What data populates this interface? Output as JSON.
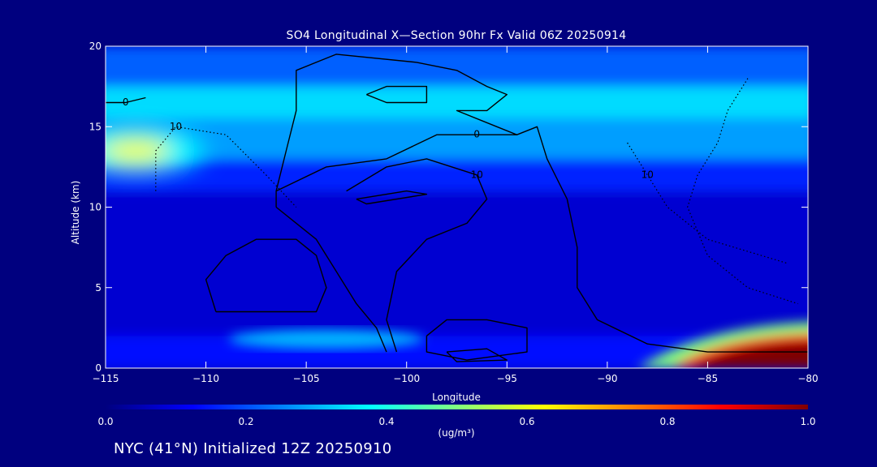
{
  "chart_data": {
    "type": "heatmap",
    "title": "SO4 Longitudinal X—Section 90hr  Fx Valid 06Z 20250914",
    "xlabel": "Longitude",
    "ylabel": "Altitude (km)",
    "xlim": [
      -115,
      -80
    ],
    "ylim": [
      0,
      20
    ],
    "x_ticks": [
      -115,
      -110,
      -105,
      -100,
      -95,
      -90,
      -85,
      -80
    ],
    "x_tick_labels": [
      "−115",
      "−110",
      "−105",
      "−100",
      "−95",
      "−90",
      "−85",
      "−80"
    ],
    "y_ticks": [
      0,
      5,
      10,
      15,
      20
    ],
    "y_tick_labels": [
      "0",
      "5",
      "10",
      "15",
      "20"
    ],
    "colorbar": {
      "min": 0.0,
      "max": 1.0,
      "ticks": [
        0.0,
        0.2,
        0.4,
        0.6,
        0.8,
        1.0
      ],
      "tick_labels": [
        "0.0",
        "0.2",
        "0.4",
        "0.6",
        "0.8",
        "1.0"
      ],
      "units": "(ug/m³)",
      "colors": [
        "#00007f",
        "#0000ff",
        "#0080ff",
        "#00ffff",
        "#80ff80",
        "#ffff00",
        "#ff8000",
        "#ff0000",
        "#7f0000"
      ]
    },
    "field": {
      "background": 0.07,
      "layers": [
        {
          "lon_range": [
            -115,
            -80
          ],
          "alt_range": [
            17.5,
            20
          ],
          "value": 0.22
        },
        {
          "lon_range": [
            -115,
            -80
          ],
          "alt_range": [
            15.5,
            17.5
          ],
          "value": 0.34
        },
        {
          "lon_range": [
            -115,
            -80
          ],
          "alt_range": [
            13,
            15.5
          ],
          "value": 0.28
        },
        {
          "lon_range": [
            -115,
            -80
          ],
          "alt_range": [
            11,
            13
          ],
          "value": 0.16
        },
        {
          "lon_range": [
            -115,
            -80
          ],
          "alt_range": [
            2,
            11
          ],
          "value": 0.08
        },
        {
          "lon_range": [
            -115,
            -80
          ],
          "alt_range": [
            0,
            2
          ],
          "value": 0.14
        }
      ],
      "features": [
        {
          "name": "upper-plume",
          "lon": -113.5,
          "alt": 13.5,
          "value": 0.62
        },
        {
          "name": "lower-plume-ne",
          "lon": -82.5,
          "alt": 1.0,
          "value": 1.0
        },
        {
          "name": "surface-band",
          "lon": -104,
          "alt": 1.8,
          "value": 0.3
        }
      ]
    },
    "contours": [
      {
        "level": 0,
        "style": "solid",
        "label": "0",
        "path": [
          [
            -106.5,
            10
          ],
          [
            -106.5,
            11
          ],
          [
            -104,
            12.5
          ],
          [
            -101,
            13
          ],
          [
            -98.5,
            14.5
          ],
          [
            -96.5,
            14.5
          ],
          [
            -94.5,
            14.5
          ],
          [
            -93.5,
            15
          ],
          [
            -93,
            13
          ],
          [
            -92,
            10.5
          ],
          [
            -91.5,
            7.5
          ],
          [
            -91.5,
            5
          ],
          [
            -90.5,
            3
          ],
          [
            -88,
            1.5
          ],
          [
            -85,
            1
          ],
          [
            -82,
            1
          ],
          [
            -80,
            1
          ]
        ]
      },
      {
        "level": 0,
        "style": "solid",
        "label": "",
        "path": [
          [
            -106.5,
            10
          ],
          [
            -104.5,
            8
          ],
          [
            -103.5,
            6
          ],
          [
            -102.5,
            4
          ],
          [
            -101.5,
            2.5
          ],
          [
            -101,
            1
          ]
        ]
      },
      {
        "level": 0,
        "style": "solid",
        "label": "",
        "path": [
          [
            -106.5,
            11
          ],
          [
            -106,
            13.5
          ],
          [
            -105.5,
            16
          ],
          [
            -105.5,
            18.5
          ],
          [
            -103.5,
            19.5
          ],
          [
            -99.5,
            19
          ],
          [
            -97.5,
            18.5
          ],
          [
            -96,
            17.5
          ],
          [
            -95,
            17
          ],
          [
            -96,
            16
          ],
          [
            -97.5,
            16
          ],
          [
            -95.5,
            15
          ],
          [
            -94.5,
            14.5
          ]
        ]
      },
      {
        "level": 0,
        "style": "solid",
        "label": "",
        "path": [
          [
            -109.5,
            3.5
          ],
          [
            -110,
            5.5
          ],
          [
            -109,
            7
          ],
          [
            -107.5,
            8
          ],
          [
            -105.5,
            8
          ],
          [
            -104.5,
            7
          ],
          [
            -104,
            5
          ],
          [
            -104.5,
            3.5
          ],
          [
            -106.5,
            3.5
          ],
          [
            -109.5,
            3.5
          ]
        ]
      },
      {
        "level": 0,
        "style": "solid",
        "label": "",
        "path": [
          [
            -102,
            17
          ],
          [
            -101,
            17.5
          ],
          [
            -99,
            17.5
          ],
          [
            -99,
            16.5
          ],
          [
            -101,
            16.5
          ],
          [
            -102,
            17
          ]
        ]
      },
      {
        "level": 0,
        "style": "solid",
        "label": "0",
        "path": [
          [
            -115,
            16.5
          ],
          [
            -114,
            16.5
          ],
          [
            -113,
            16.8
          ]
        ]
      },
      {
        "level": 10,
        "style": "solid",
        "label": "10",
        "path": [
          [
            -103,
            11
          ],
          [
            -101,
            12.5
          ],
          [
            -99,
            13
          ],
          [
            -96.5,
            12
          ],
          [
            -96,
            10.5
          ],
          [
            -97,
            9
          ],
          [
            -99,
            8
          ],
          [
            -100.5,
            6
          ],
          [
            -101,
            3
          ],
          [
            -100.5,
            1
          ]
        ]
      },
      {
        "level": 10,
        "style": "solid",
        "label": "",
        "path": [
          [
            -102.5,
            10.5
          ],
          [
            -100,
            11
          ],
          [
            -99,
            10.8
          ],
          [
            -102,
            10.2
          ],
          [
            -102.5,
            10.5
          ]
        ]
      },
      {
        "level": 10,
        "style": "solid",
        "label": "",
        "path": [
          [
            -99,
            2
          ],
          [
            -98,
            3
          ],
          [
            -96,
            3
          ],
          [
            -94,
            2.5
          ],
          [
            -94,
            1
          ],
          [
            -97,
            0.5
          ],
          [
            -99,
            1
          ],
          [
            -99,
            2
          ]
        ]
      },
      {
        "level": 10,
        "style": "solid",
        "label": "",
        "path": [
          [
            -98,
            1
          ],
          [
            -96,
            1.2
          ],
          [
            -95,
            0.5
          ],
          [
            -97.5,
            0.4
          ],
          [
            -98,
            1
          ]
        ]
      },
      {
        "level": -10,
        "style": "dotted",
        "label": "10",
        "path": [
          [
            -112.5,
            11
          ],
          [
            -112.5,
            13.5
          ],
          [
            -111.5,
            15
          ],
          [
            -109,
            14.5
          ],
          [
            -107,
            12
          ],
          [
            -105.5,
            10
          ]
        ]
      },
      {
        "level": -10,
        "style": "dotted",
        "label": "",
        "path": [
          [
            -83,
            18
          ],
          [
            -84,
            16
          ],
          [
            -84.5,
            14
          ],
          [
            -85.5,
            12
          ],
          [
            -86,
            10
          ],
          [
            -85,
            7
          ],
          [
            -83,
            5
          ],
          [
            -80.5,
            4
          ]
        ]
      },
      {
        "level": -10,
        "style": "dotted",
        "label": "10",
        "path": [
          [
            -89,
            14
          ],
          [
            -88,
            12
          ],
          [
            -87,
            10
          ],
          [
            -85,
            8
          ],
          [
            -81,
            6.5
          ]
        ]
      }
    ],
    "annotations": [
      "NYC (41°N) Initialized 12Z 20250910"
    ]
  },
  "footer": {
    "text": "NYC (41°N) Initialized 12Z 20250910"
  }
}
